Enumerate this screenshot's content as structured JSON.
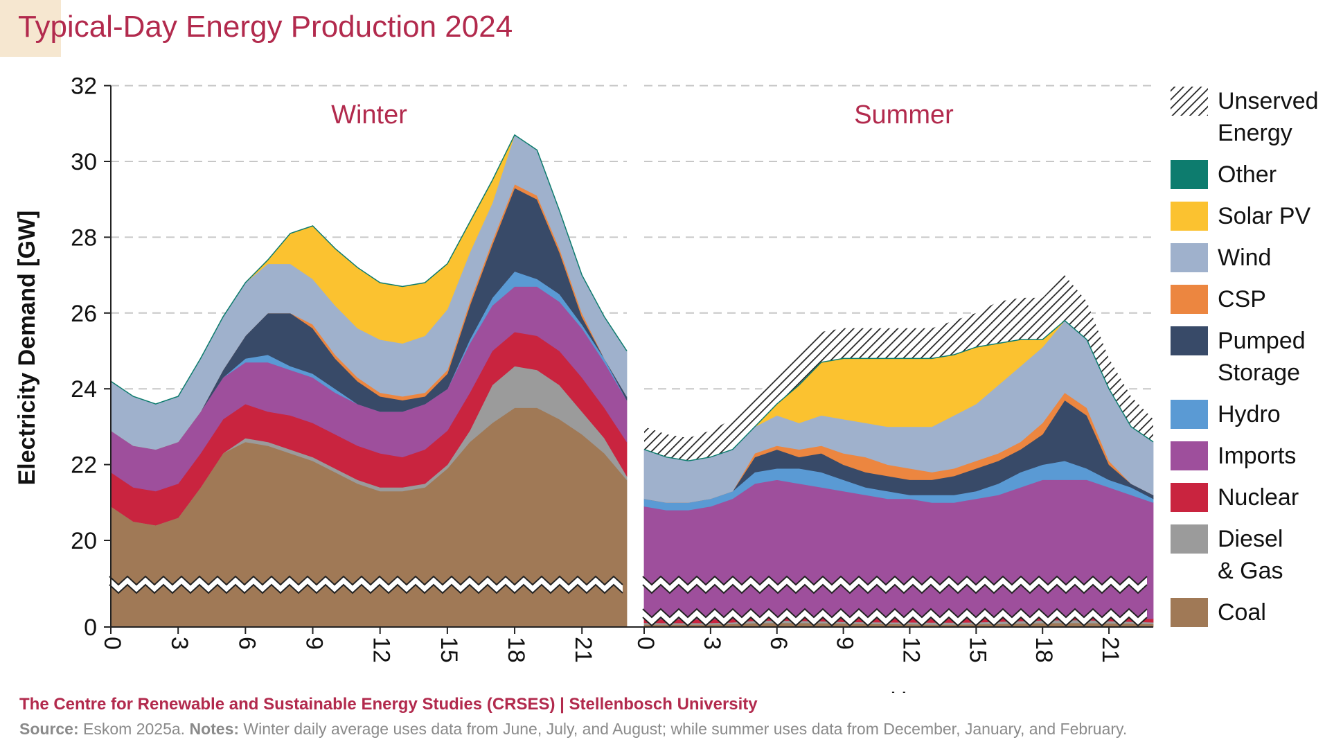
{
  "title": "Typical-Day Energy Production 2024",
  "credit": "The Centre for Renewable and Sustainable Energy Studies (CRSES) | Stellenbosch University",
  "source_label": "Source:",
  "source_text": " Eskom 2025a. ",
  "notes_label": "Notes:",
  "notes_text": " Winter daily average uses data from June, July, and August; while summer uses data from December, January, and February.",
  "chart_data": {
    "type": "area",
    "stacked": true,
    "ylabel": "Electricity Demand [GW]",
    "xlabel": "Hour",
    "y_ticks": [
      "0",
      "20",
      "22",
      "24",
      "26",
      "28",
      "30",
      "32"
    ],
    "y_axis_break": "between 0 and 20",
    "x_ticks": [
      "0",
      "3",
      "6",
      "9",
      "12",
      "15",
      "18",
      "21"
    ],
    "grid": "horizontal dashed",
    "legend_position": "right",
    "legend": [
      {
        "name": "Unserved Energy",
        "lines": [
          "Unserved",
          "Energy"
        ],
        "color": "hatch"
      },
      {
        "name": "Other",
        "lines": [
          "Other"
        ],
        "color": "#0d7c6e"
      },
      {
        "name": "Solar PV",
        "lines": [
          "Solar PV"
        ],
        "color": "#fbc230"
      },
      {
        "name": "Wind",
        "lines": [
          "Wind"
        ],
        "color": "#9fb1cc"
      },
      {
        "name": "CSP",
        "lines": [
          "CSP"
        ],
        "color": "#ec8640"
      },
      {
        "name": "Pumped Storage",
        "lines": [
          "Pumped",
          "Storage"
        ],
        "color": "#384a68"
      },
      {
        "name": "Hydro",
        "lines": [
          "Hydro"
        ],
        "color": "#5a9ad4"
      },
      {
        "name": "Imports",
        "lines": [
          "Imports"
        ],
        "color": "#9e4f9c"
      },
      {
        "name": "Nuclear",
        "lines": [
          "Nuclear"
        ],
        "color": "#c9243f"
      },
      {
        "name": "Diesel & Gas",
        "lines": [
          "Diesel",
          "& Gas"
        ],
        "color": "#9b9b9b"
      },
      {
        "name": "Coal",
        "lines": [
          "Coal"
        ],
        "color": "#a07956"
      }
    ],
    "panels": [
      {
        "name": "Winter",
        "hours": [
          0,
          1,
          2,
          3,
          4,
          5,
          6,
          7,
          8,
          9,
          10,
          11,
          12,
          13,
          14,
          15,
          16,
          17,
          18,
          19,
          20,
          21,
          22,
          23
        ],
        "cumulative_tops": {
          "Coal": [
            20.9,
            20.5,
            20.4,
            20.6,
            21.4,
            22.3,
            22.6,
            22.5,
            22.3,
            22.1,
            21.8,
            21.5,
            21.3,
            21.3,
            21.4,
            21.9,
            22.6,
            23.1,
            23.5,
            23.5,
            23.2,
            22.8,
            22.3,
            21.6
          ],
          "Diesel & Gas": [
            20.9,
            20.5,
            20.4,
            20.6,
            21.4,
            22.3,
            22.7,
            22.6,
            22.4,
            22.2,
            21.9,
            21.6,
            21.4,
            21.4,
            21.5,
            22.0,
            22.9,
            24.1,
            24.6,
            24.5,
            24.1,
            23.4,
            22.7,
            21.7
          ],
          "Nuclear": [
            21.8,
            21.4,
            21.3,
            21.5,
            22.3,
            23.2,
            23.6,
            23.4,
            23.3,
            23.1,
            22.8,
            22.5,
            22.3,
            22.2,
            22.4,
            22.9,
            23.9,
            25.0,
            25.5,
            25.4,
            25.0,
            24.3,
            23.5,
            22.6
          ],
          "Imports": [
            22.9,
            22.5,
            22.4,
            22.6,
            23.4,
            24.3,
            24.7,
            24.7,
            24.5,
            24.3,
            23.9,
            23.6,
            23.4,
            23.4,
            23.6,
            24.0,
            25.2,
            26.2,
            26.7,
            26.7,
            26.3,
            25.6,
            24.7,
            23.7
          ],
          "Hydro": [
            22.9,
            22.5,
            22.4,
            22.6,
            23.4,
            24.3,
            24.8,
            24.9,
            24.6,
            24.4,
            24.0,
            23.6,
            23.4,
            23.4,
            23.6,
            24.0,
            25.3,
            26.4,
            27.1,
            26.9,
            26.5,
            25.7,
            24.8,
            23.7
          ],
          "Pumped Storage": [
            22.9,
            22.5,
            22.4,
            22.6,
            23.4,
            24.5,
            25.4,
            26.0,
            26.0,
            25.6,
            24.8,
            24.2,
            23.8,
            23.7,
            23.8,
            24.4,
            26.2,
            27.8,
            29.3,
            29.0,
            27.6,
            25.9,
            24.8,
            23.8
          ],
          "CSP": [
            22.9,
            22.5,
            22.4,
            22.6,
            23.4,
            24.5,
            25.4,
            26.0,
            26.0,
            25.7,
            24.9,
            24.3,
            23.9,
            23.8,
            23.9,
            24.5,
            26.3,
            27.9,
            29.4,
            29.1,
            27.7,
            26.0,
            24.8,
            23.8
          ],
          "Wind": [
            24.2,
            23.8,
            23.6,
            23.8,
            24.8,
            25.9,
            26.8,
            27.3,
            27.3,
            26.9,
            26.2,
            25.6,
            25.3,
            25.2,
            25.4,
            26.1,
            27.6,
            28.9,
            30.7,
            30.3,
            28.7,
            27.0,
            25.9,
            25.0
          ],
          "Solar PV": [
            24.2,
            23.8,
            23.6,
            23.8,
            24.8,
            25.9,
            26.8,
            27.4,
            28.1,
            28.3,
            27.7,
            27.2,
            26.8,
            26.7,
            26.8,
            27.3,
            28.4,
            29.5,
            30.7,
            30.3,
            28.7,
            27.0,
            25.9,
            25.0
          ],
          "Other": [
            24.2,
            23.8,
            23.6,
            23.8,
            24.8,
            25.9,
            26.8,
            27.4,
            28.1,
            28.3,
            27.7,
            27.2,
            26.8,
            26.7,
            26.8,
            27.3,
            28.4,
            29.5,
            30.7,
            30.3,
            28.7,
            27.0,
            25.9,
            25.0
          ],
          "Unserved Energy": [
            24.2,
            23.8,
            23.6,
            23.8,
            24.8,
            25.9,
            26.8,
            27.4,
            28.1,
            28.3,
            27.7,
            27.2,
            26.8,
            26.7,
            26.8,
            27.3,
            28.4,
            29.5,
            30.7,
            30.3,
            28.7,
            27.0,
            25.9,
            25.0
          ]
        }
      },
      {
        "name": "Summer",
        "hours": [
          0,
          1,
          2,
          3,
          4,
          5,
          6,
          7,
          8,
          9,
          10,
          11,
          12,
          13,
          14,
          15,
          16,
          17,
          18,
          19,
          20,
          21,
          22,
          23
        ],
        "cumulative_tops": {
          "Coal": [
            0.6,
            0.6,
            0.6,
            0.6,
            0.7,
            0.9,
            0.95,
            0.95,
            0.9,
            0.8,
            0.75,
            0.7,
            0.65,
            0.6,
            0.6,
            0.65,
            0.7,
            0.8,
            0.9,
            0.95,
            0.95,
            0.85,
            0.8,
            0.7
          ],
          "Diesel & Gas": [
            1.0,
            0.95,
            0.95,
            0.95,
            1.1,
            1.45,
            1.55,
            1.45,
            1.35,
            1.2,
            1.15,
            1.1,
            1.1,
            1.05,
            1.05,
            1.1,
            1.25,
            1.4,
            1.55,
            1.6,
            1.6,
            1.4,
            1.25,
            1.1
          ],
          "Nuclear": [
            1.8,
            1.75,
            1.75,
            1.75,
            1.9,
            2.25,
            2.35,
            2.25,
            2.15,
            2.0,
            1.95,
            1.9,
            1.9,
            1.85,
            1.85,
            1.9,
            2.05,
            2.2,
            2.35,
            2.4,
            2.4,
            2.2,
            2.05,
            1.9
          ],
          "Imports": [
            20.9,
            20.8,
            20.8,
            20.9,
            21.1,
            21.5,
            21.6,
            21.5,
            21.4,
            21.3,
            21.2,
            21.1,
            21.1,
            21.0,
            21.0,
            21.1,
            21.2,
            21.4,
            21.6,
            21.6,
            21.6,
            21.4,
            21.2,
            21.0
          ],
          "Hydro": [
            21.1,
            21.0,
            21.0,
            21.1,
            21.3,
            21.8,
            21.9,
            21.9,
            21.8,
            21.6,
            21.4,
            21.3,
            21.2,
            21.2,
            21.2,
            21.3,
            21.5,
            21.8,
            22.0,
            22.1,
            21.9,
            21.6,
            21.4,
            21.1
          ],
          "Pumped Storage": [
            21.1,
            21.0,
            21.0,
            21.1,
            21.3,
            22.2,
            22.4,
            22.2,
            22.3,
            22.0,
            21.8,
            21.7,
            21.6,
            21.6,
            21.7,
            21.9,
            22.1,
            22.4,
            22.8,
            23.7,
            23.3,
            22.0,
            21.5,
            21.2
          ],
          "CSP": [
            21.1,
            21.0,
            21.0,
            21.1,
            21.3,
            22.3,
            22.5,
            22.4,
            22.5,
            22.3,
            22.2,
            22.0,
            21.9,
            21.8,
            21.9,
            22.1,
            22.3,
            22.6,
            23.1,
            23.9,
            23.5,
            22.1,
            21.5,
            21.2
          ],
          "Wind": [
            22.4,
            22.2,
            22.1,
            22.2,
            22.4,
            23.0,
            23.3,
            23.1,
            23.3,
            23.2,
            23.1,
            23.0,
            23.0,
            23.0,
            23.3,
            23.6,
            24.1,
            24.6,
            25.1,
            25.8,
            25.3,
            24.0,
            23.0,
            22.6
          ],
          "Solar PV": [
            22.4,
            22.2,
            22.1,
            22.2,
            22.4,
            23.0,
            23.6,
            24.1,
            24.7,
            24.8,
            24.8,
            24.8,
            24.8,
            24.8,
            24.9,
            25.1,
            25.2,
            25.3,
            25.3,
            25.8,
            25.3,
            24.0,
            23.0,
            22.6
          ],
          "Other": [
            22.4,
            22.2,
            22.1,
            22.2,
            22.4,
            23.0,
            23.6,
            24.1,
            24.7,
            24.8,
            24.8,
            24.8,
            24.8,
            24.8,
            24.9,
            25.1,
            25.2,
            25.3,
            25.3,
            25.8,
            25.3,
            24.0,
            23.0,
            22.6
          ],
          "Unserved Energy": [
            23.0,
            22.8,
            22.7,
            22.9,
            23.2,
            23.8,
            24.4,
            25.0,
            25.5,
            25.6,
            25.6,
            25.6,
            25.6,
            25.6,
            25.8,
            26.0,
            26.3,
            26.4,
            26.4,
            27.0,
            26.3,
            24.8,
            23.8,
            23.2
          ]
        }
      }
    ]
  }
}
